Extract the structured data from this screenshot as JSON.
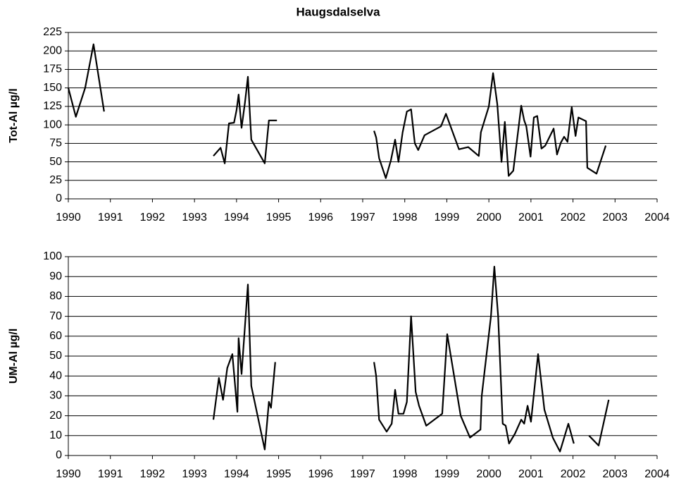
{
  "chart_data": [
    {
      "type": "line",
      "title": "Haugsdalselva",
      "y_label": "Tot-Al µg/l",
      "color": "#000000",
      "grid": true,
      "xlim": [
        1990,
        2004
      ],
      "xticks": [
        1990,
        1991,
        1992,
        1993,
        1994,
        1995,
        1996,
        1997,
        1998,
        1999,
        2000,
        2001,
        2002,
        2003,
        2004
      ],
      "ylim": [
        0,
        225
      ],
      "yticks": [
        0,
        25,
        50,
        75,
        100,
        125,
        150,
        175,
        200,
        225
      ],
      "x": [
        1990.0,
        1990.18,
        1990.4,
        1990.6,
        1990.85,
        null,
        1993.45,
        1993.62,
        1993.72,
        1993.82,
        1993.94,
        1994.0,
        1994.05,
        1994.12,
        1994.2,
        1994.27,
        1994.35,
        1994.67,
        1994.77,
        1994.96,
        null,
        1997.27,
        1997.32,
        1997.39,
        1997.55,
        1997.67,
        1997.77,
        1997.85,
        1997.95,
        1998.05,
        1998.15,
        1998.24,
        1998.32,
        1998.47,
        1998.86,
        1998.98,
        1999.29,
        1999.51,
        1999.76,
        1999.81,
        2000.0,
        2000.1,
        2000.2,
        2000.3,
        2000.38,
        2000.47,
        2000.58,
        2000.77,
        2000.84,
        2000.89,
        2000.99,
        2001.07,
        2001.15,
        2001.25,
        2001.34,
        2001.54,
        2001.62,
        2001.71,
        2001.79,
        2001.87,
        2001.97,
        2002.06,
        2002.13,
        2002.31,
        2002.34,
        2002.56,
        2002.78
      ],
      "values": [
        150,
        111,
        150,
        209,
        118,
        null,
        58,
        69,
        48,
        102,
        103,
        120,
        141,
        96,
        130,
        165,
        80,
        48,
        106,
        106,
        null,
        92,
        83,
        55,
        28,
        52,
        80,
        50,
        90,
        118,
        121,
        75,
        66,
        86,
        98,
        115,
        67,
        70,
        58,
        90,
        125,
        170,
        128,
        50,
        104,
        31,
        38,
        126,
        106,
        98,
        57,
        110,
        112,
        68,
        72,
        95,
        60,
        76,
        84,
        77,
        124,
        85,
        110,
        105,
        42,
        34,
        72
      ]
    },
    {
      "type": "line",
      "y_label": "UM-Al µg/l",
      "color": "#000000",
      "grid": true,
      "xlim": [
        1990,
        2004
      ],
      "xticks": [
        1990,
        1991,
        1992,
        1993,
        1994,
        1995,
        1996,
        1997,
        1998,
        1999,
        2000,
        2001,
        2002,
        2003,
        2004
      ],
      "ylim": [
        0,
        100
      ],
      "yticks": [
        0,
        10,
        20,
        30,
        40,
        50,
        60,
        70,
        80,
        90,
        100
      ],
      "x": [
        1993.45,
        1993.58,
        1993.68,
        1993.78,
        1993.9,
        1994.02,
        1994.05,
        1994.12,
        1994.2,
        1994.27,
        1994.35,
        1994.67,
        1994.77,
        1994.82,
        1994.92,
        null,
        1997.27,
        1997.32,
        1997.39,
        1997.57,
        1997.69,
        1997.77,
        1997.85,
        1997.97,
        1998.05,
        1998.15,
        1998.26,
        1998.34,
        1998.51,
        1998.89,
        1999.01,
        1999.33,
        1999.55,
        1999.8,
        1999.83,
        2000.05,
        2000.13,
        2000.22,
        2000.33,
        2000.4,
        2000.48,
        2000.62,
        2000.77,
        2000.84,
        2000.92,
        2001.0,
        2001.17,
        2001.32,
        2001.52,
        2001.69,
        2001.89,
        2002.02,
        null,
        2002.38,
        2002.61,
        2002.85
      ],
      "values": [
        18,
        39,
        28,
        44,
        51,
        22,
        59,
        41,
        65,
        86,
        35,
        3,
        27,
        24,
        47,
        null,
        47,
        40,
        18,
        12,
        16,
        33,
        21,
        21,
        27,
        70,
        32,
        25,
        15,
        21,
        61,
        20,
        9,
        13,
        30,
        70,
        95,
        70,
        16,
        15,
        6,
        11,
        18,
        16,
        25,
        17,
        51,
        23,
        9,
        2,
        16,
        6,
        null,
        10,
        5,
        28
      ]
    }
  ]
}
